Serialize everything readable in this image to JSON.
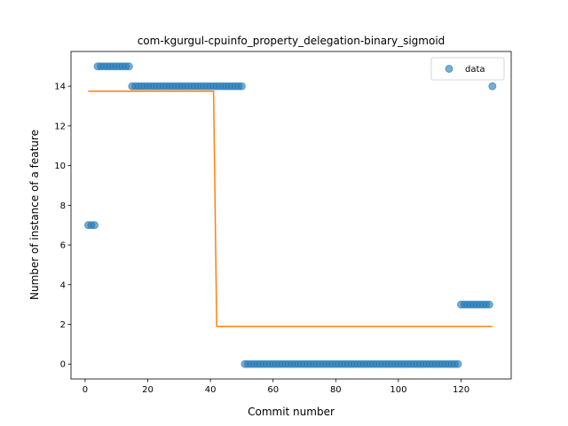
{
  "chart_data": {
    "type": "scatter",
    "title": "com-kgurgul-cpuinfo_property_delegation-binary_sigmoid",
    "xlabel": "Commit number",
    "ylabel": "Number of instance of a feature",
    "xlim": [
      -4.5,
      136
    ],
    "ylim": [
      -0.75,
      15.75
    ],
    "xticks": [
      0,
      20,
      40,
      60,
      80,
      100,
      120
    ],
    "yticks": [
      0,
      2,
      4,
      6,
      8,
      10,
      12,
      14
    ],
    "grid": false,
    "legend": {
      "position": "top-right",
      "entries": [
        "data"
      ]
    },
    "colors": {
      "data": "#1f77b4",
      "fit": "#ff7f0e"
    },
    "series": [
      {
        "name": "data",
        "kind": "scatter",
        "points": [
          [
            1,
            7
          ],
          [
            2,
            7
          ],
          [
            3,
            7
          ],
          [
            4,
            15
          ],
          [
            5,
            15
          ],
          [
            6,
            15
          ],
          [
            7,
            15
          ],
          [
            8,
            15
          ],
          [
            9,
            15
          ],
          [
            10,
            15
          ],
          [
            11,
            15
          ],
          [
            12,
            15
          ],
          [
            13,
            15
          ],
          [
            14,
            15
          ],
          [
            15,
            14
          ],
          [
            16,
            14
          ],
          [
            17,
            14
          ],
          [
            18,
            14
          ],
          [
            19,
            14
          ],
          [
            20,
            14
          ],
          [
            21,
            14
          ],
          [
            22,
            14
          ],
          [
            23,
            14
          ],
          [
            24,
            14
          ],
          [
            25,
            14
          ],
          [
            26,
            14
          ],
          [
            27,
            14
          ],
          [
            28,
            14
          ],
          [
            29,
            14
          ],
          [
            30,
            14
          ],
          [
            31,
            14
          ],
          [
            32,
            14
          ],
          [
            33,
            14
          ],
          [
            34,
            14
          ],
          [
            35,
            14
          ],
          [
            36,
            14
          ],
          [
            37,
            14
          ],
          [
            38,
            14
          ],
          [
            39,
            14
          ],
          [
            40,
            14
          ],
          [
            41,
            14
          ],
          [
            42,
            14
          ],
          [
            43,
            14
          ],
          [
            44,
            14
          ],
          [
            45,
            14
          ],
          [
            46,
            14
          ],
          [
            47,
            14
          ],
          [
            48,
            14
          ],
          [
            49,
            14
          ],
          [
            50,
            14
          ],
          [
            51,
            0
          ],
          [
            52,
            0
          ],
          [
            53,
            0
          ],
          [
            54,
            0
          ],
          [
            55,
            0
          ],
          [
            56,
            0
          ],
          [
            57,
            0
          ],
          [
            58,
            0
          ],
          [
            59,
            0
          ],
          [
            60,
            0
          ],
          [
            61,
            0
          ],
          [
            62,
            0
          ],
          [
            63,
            0
          ],
          [
            64,
            0
          ],
          [
            65,
            0
          ],
          [
            66,
            0
          ],
          [
            67,
            0
          ],
          [
            68,
            0
          ],
          [
            69,
            0
          ],
          [
            70,
            0
          ],
          [
            71,
            0
          ],
          [
            72,
            0
          ],
          [
            73,
            0
          ],
          [
            74,
            0
          ],
          [
            75,
            0
          ],
          [
            76,
            0
          ],
          [
            77,
            0
          ],
          [
            78,
            0
          ],
          [
            79,
            0
          ],
          [
            80,
            0
          ],
          [
            81,
            0
          ],
          [
            82,
            0
          ],
          [
            83,
            0
          ],
          [
            84,
            0
          ],
          [
            85,
            0
          ],
          [
            86,
            0
          ],
          [
            87,
            0
          ],
          [
            88,
            0
          ],
          [
            89,
            0
          ],
          [
            90,
            0
          ],
          [
            91,
            0
          ],
          [
            92,
            0
          ],
          [
            93,
            0
          ],
          [
            94,
            0
          ],
          [
            95,
            0
          ],
          [
            96,
            0
          ],
          [
            97,
            0
          ],
          [
            98,
            0
          ],
          [
            99,
            0
          ],
          [
            100,
            0
          ],
          [
            101,
            0
          ],
          [
            102,
            0
          ],
          [
            103,
            0
          ],
          [
            104,
            0
          ],
          [
            105,
            0
          ],
          [
            106,
            0
          ],
          [
            107,
            0
          ],
          [
            108,
            0
          ],
          [
            109,
            0
          ],
          [
            110,
            0
          ],
          [
            111,
            0
          ],
          [
            112,
            0
          ],
          [
            113,
            0
          ],
          [
            114,
            0
          ],
          [
            115,
            0
          ],
          [
            116,
            0
          ],
          [
            117,
            0
          ],
          [
            118,
            0
          ],
          [
            119,
            0
          ],
          [
            120,
            3
          ],
          [
            121,
            3
          ],
          [
            122,
            3
          ],
          [
            123,
            3
          ],
          [
            124,
            3
          ],
          [
            125,
            3
          ],
          [
            126,
            3
          ],
          [
            127,
            3
          ],
          [
            128,
            3
          ],
          [
            129,
            3
          ],
          [
            130,
            14
          ]
        ]
      },
      {
        "kind": "line",
        "points": [
          [
            1,
            13.75
          ],
          [
            41,
            13.75
          ],
          [
            42,
            1.9
          ],
          [
            130,
            1.9
          ]
        ]
      }
    ]
  }
}
